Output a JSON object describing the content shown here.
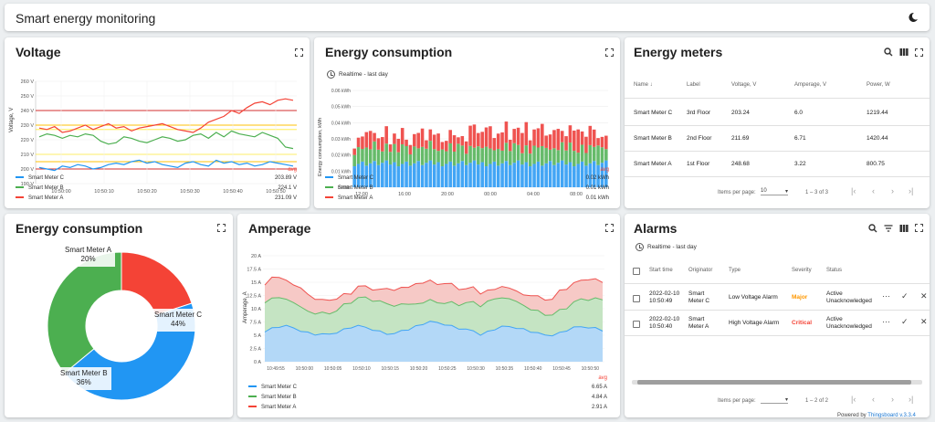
{
  "header": {
    "title": "Smart energy monitoring",
    "theme_icon": "moon-icon"
  },
  "voltage": {
    "title": "Voltage",
    "ylabel": "Voltage, V",
    "yticks": [
      "260 V",
      "250 V",
      "240 V",
      "230 V",
      "220 V",
      "210 V",
      "200 V",
      "190 V"
    ],
    "xticks": [
      "10:50:00",
      "10:50:10",
      "10:50:20",
      "10:50:30",
      "10:50:40",
      "10:50:50"
    ],
    "avg_label": "avg",
    "legend": [
      {
        "name": "Smart Meter C",
        "value": "203.89 V",
        "color": "#2196f3"
      },
      {
        "name": "Smart Meter B",
        "value": "224.1 V",
        "color": "#4caf50"
      },
      {
        "name": "Smart Meter A",
        "value": "231.09 V",
        "color": "#f44336"
      }
    ]
  },
  "energy_bar": {
    "title": "Energy consumption",
    "timewindow": "Realtime - last day",
    "ylabel": "Energy consumption, kWh",
    "yticks": [
      "0.06 kWh",
      "0.05 kWh",
      "0.04 kWh",
      "0.03 kWh",
      "0.02 kWh",
      "0.01 kWh",
      "0 kWh"
    ],
    "xticks": [
      "12:00",
      "16:00",
      "20:00",
      "00:00",
      "04:00",
      "08:00"
    ],
    "avg_label": "avg",
    "legend": [
      {
        "name": "Smart Meter C",
        "value": "0.02 kWh",
        "color": "#2196f3"
      },
      {
        "name": "Smart Meter B",
        "value": "0.01 kWh",
        "color": "#4caf50"
      },
      {
        "name": "Smart Meter A",
        "value": "0.01 kWh",
        "color": "#f44336"
      }
    ]
  },
  "meters": {
    "title": "Energy meters",
    "columns": [
      "Name",
      "Label",
      "Voltage, V",
      "Amperage, V",
      "Power, W"
    ],
    "rows": [
      [
        "Smart Meter C",
        "3rd Floor",
        "203.24",
        "6.0",
        "1219.44"
      ],
      [
        "Smart Meter B",
        "2nd Floor",
        "211.69",
        "6.71",
        "1420.44"
      ],
      [
        "Smart Meter A",
        "1st Floor",
        "248.68",
        "3.22",
        "800.75"
      ]
    ],
    "items_per_page_label": "Items per page:",
    "items_per_page": "10",
    "range": "1 – 3 of 3"
  },
  "pie": {
    "title": "Energy consumption",
    "labels": [
      {
        "name": "Smart Meter A",
        "pct": "20%"
      },
      {
        "name": "Smart Meter C",
        "pct": "44%"
      },
      {
        "name": "Smart Meter B",
        "pct": "36%"
      }
    ]
  },
  "amperage": {
    "title": "Amperage",
    "ylabel": "Amperage, A",
    "yticks": [
      "20 A",
      "17.5 A",
      "15 A",
      "12.5 A",
      "10 A",
      "7.5 A",
      "5 A",
      "2.5 A",
      "0 A"
    ],
    "xticks": [
      "10:49:55",
      "10:50:00",
      "10:50:05",
      "10:50:10",
      "10:50:15",
      "10:50:20",
      "10:50:25",
      "10:50:30",
      "10:50:35",
      "10:50:40",
      "10:50:45",
      "10:50:50"
    ],
    "avg_label": "avg",
    "legend": [
      {
        "name": "Smart Meter C",
        "value": "6.65 A",
        "color": "#2196f3"
      },
      {
        "name": "Smart Meter B",
        "value": "4.84 A",
        "color": "#4caf50"
      },
      {
        "name": "Smart Meter A",
        "value": "2.91 A",
        "color": "#f44336"
      }
    ]
  },
  "alarms": {
    "title": "Alarms",
    "timewindow": "Realtime - last day",
    "columns": [
      "Start time",
      "Originator",
      "Type",
      "Severity",
      "Status"
    ],
    "rows": [
      {
        "time1": "2022-02-10",
        "time2": "10:50:49",
        "orig1": "Smart",
        "orig2": "Meter C",
        "type": "Low Voltage Alarm",
        "severity": "Major",
        "status1": "Active",
        "status2": "Unacknowledged"
      },
      {
        "time1": "2022-02-10",
        "time2": "10:50:40",
        "orig1": "Smart",
        "orig2": "Meter A",
        "type": "High Voltage Alarm",
        "severity": "Critical",
        "status1": "Active",
        "status2": "Unacknowledged"
      }
    ],
    "items_per_page_label": "Items per page:",
    "range": "1 – 2 of 2"
  },
  "footer": {
    "powered": "Powered by ",
    "brand": "Thingsboard v.3.3.4"
  },
  "colors": {
    "c": "#2196f3",
    "b": "#4caf50",
    "a": "#f44336",
    "major": "#ff9800",
    "critical": "#f44336"
  }
}
